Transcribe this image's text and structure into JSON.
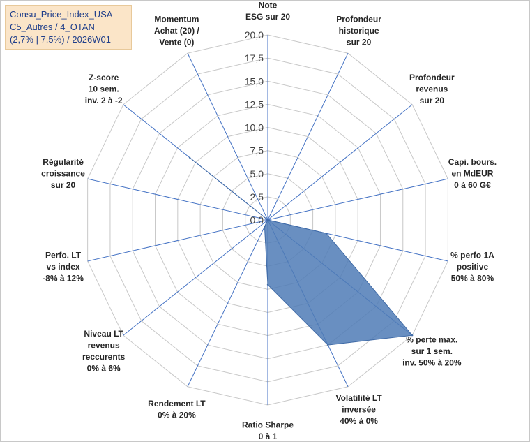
{
  "title_lines": [
    "Consu_Price_Index_USA",
    "C5_Autres / 4_OTAN",
    "(2,7% | 7,5%) / 2026W01"
  ],
  "colors": {
    "fill": "#4f7bb6",
    "stroke": "#3f6aa6",
    "grid": "#c8c8c8",
    "spoke": "#4472c4"
  },
  "chart_data": {
    "type": "radar",
    "rmin": 0,
    "rmax": 20,
    "ticks": [
      "0,0",
      "2,5",
      "5,0",
      "7,5",
      "10,0",
      "12,5",
      "15,0",
      "17,5",
      "20,0"
    ],
    "axes": [
      {
        "lines": [
          "Note",
          "ESG sur 20"
        ],
        "value": 0
      },
      {
        "lines": [
          "Profondeur",
          "historique",
          "sur 20"
        ],
        "value": 0
      },
      {
        "lines": [
          "Profondeur",
          "revenus",
          "sur 20"
        ],
        "value": 0
      },
      {
        "lines": [
          "Capi. bours.",
          "en MdEUR",
          "0 à 60 G€"
        ],
        "value": 0
      },
      {
        "lines": [
          "% perfo 1A",
          "positive",
          "50% à 80%"
        ],
        "value": 6.5
      },
      {
        "lines": [
          "% perte max.",
          "sur 1 sem.",
          "inv. 50% à 20%"
        ],
        "value": 20
      },
      {
        "lines": [
          "Volatilité LT",
          "inversée",
          "40% à 0%"
        ],
        "value": 15
      },
      {
        "lines": [
          "Ratio Sharpe",
          "0 à 1"
        ],
        "value": 7
      },
      {
        "lines": [
          "Rendement LT",
          "0% à 20%"
        ],
        "value": 0.8
      },
      {
        "lines": [
          "Niveau LT",
          "revenus",
          "reccurents",
          "0% à 6%"
        ],
        "value": 0
      },
      {
        "lines": [
          "Perfo. LT",
          "vs index",
          "-8% à 12%"
        ],
        "value": 0
      },
      {
        "lines": [
          "Régularité",
          "croissance",
          "sur 20"
        ],
        "value": 0
      },
      {
        "lines": [
          "Z-score",
          "10 sem.",
          "inv. 2 à -2"
        ],
        "value": 10.8
      },
      {
        "lines": [
          "Momentum",
          "Achat (20) /",
          "Vente (0)"
        ],
        "value": 0
      }
    ]
  }
}
